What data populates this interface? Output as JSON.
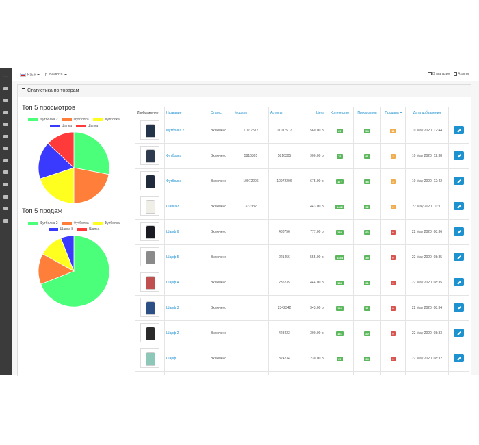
{
  "top_bar": {
    "language": "Язык",
    "currency": "р. Валюта",
    "store": "В магазин",
    "logout": "Выход"
  },
  "panel": {
    "title": "Статистика по товарам"
  },
  "charts": [
    {
      "type": "pie",
      "title": "Топ 5 просмотров",
      "labels": [
        "Футболка 2",
        "Футболка",
        "Футболка",
        "Шапка",
        "Шапка"
      ],
      "colors": [
        "#4cff7a",
        "#ff7f3a",
        "#ffff1f",
        "#3a3aff",
        "#ff3a3a"
      ],
      "values": [
        28,
        22,
        20,
        17,
        13
      ]
    },
    {
      "type": "pie",
      "title": "Топ 5 продаж",
      "labels": [
        "Футболка 2",
        "Футболка",
        "Футболка",
        "Шапка 8",
        "Шапка"
      ],
      "colors": [
        "#4cff7a",
        "#ff7f3a",
        "#ffff1f",
        "#3a3aff",
        "#ff3a3a"
      ],
      "values": [
        69,
        14,
        11,
        6,
        0
      ]
    }
  ],
  "table": {
    "headers": [
      "Изображение",
      "Название",
      "Статус",
      "Модель",
      "Артикул",
      "Цена",
      "Количество",
      "Просмотров",
      "Продана",
      "Дата добавления"
    ],
    "rows": [
      [
        "Футболка 2",
        "Включено",
        "11037517",
        "11037517",
        "560.00 р.",
        87,
        54,
        11,
        "10 May 2020, 12:44"
      ],
      [
        "Футболка",
        "Включено",
        "5816305",
        "5816305",
        "900.00 р.",
        76,
        81,
        3,
        "10 May 2020, 12:38"
      ],
      [
        "Футболка",
        "Включено",
        "10972206",
        "10972206",
        "675.00 р.",
        177,
        48,
        3,
        "10 May 2020, 12:42"
      ],
      [
        "Шапка 8",
        "Включено",
        "322332",
        null,
        "443.00 р.",
        1442,
        92,
        2,
        "22 May 2020, 10:11"
      ],
      [
        "Шарф 6",
        "Включено",
        null,
        "438756",
        "777.00 р.",
        188,
        92,
        0,
        "22 May 2020, 08:36"
      ],
      [
        "Шарф 5",
        "Включено",
        null,
        "221456",
        "555.00 р.",
        1444,
        35,
        0,
        "22 May 2020, 08:35"
      ],
      [
        "Шарф 4",
        "Включено",
        null,
        "235235",
        "444.00 р.",
        188,
        21,
        0,
        "22 May 2020, 08:35"
      ],
      [
        "Шарф 3",
        "Включено",
        null,
        "2342342",
        "343.00 р.",
        142,
        31,
        0,
        "22 May 2020, 08:34"
      ],
      [
        "Шарф 2",
        "Включено",
        null,
        "423423",
        "300.00 р.",
        131,
        20,
        0,
        "22 May 2020, 08:33"
      ],
      [
        "Шарф",
        "Включено",
        null,
        "324234",
        "230.00 р.",
        87,
        34,
        0,
        "22 May 2020, 08:32"
      ]
    ]
  }
}
